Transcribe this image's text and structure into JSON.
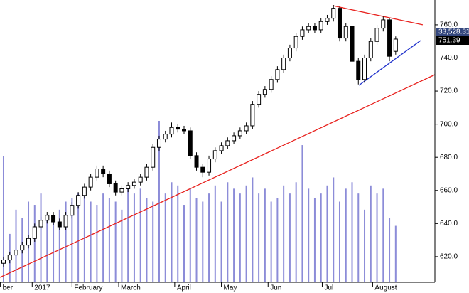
{
  "chart_data": {
    "type": "candlestick",
    "open": [
      616,
      618,
      621,
      624,
      627,
      631,
      638,
      642,
      645,
      641,
      638,
      645,
      651,
      657,
      662,
      668,
      673,
      670,
      664,
      659,
      661,
      663,
      665,
      668,
      674,
      686,
      691,
      694,
      698,
      697,
      696,
      681,
      674,
      671,
      679,
      684,
      687,
      690,
      693,
      696,
      699,
      712,
      718,
      721,
      727,
      733,
      740,
      746,
      753,
      757,
      759,
      757,
      762,
      764,
      770,
      752,
      759,
      738,
      727,
      740,
      750,
      758,
      763,
      744
    ],
    "high": [
      620,
      623,
      626,
      629,
      633,
      640,
      644,
      647,
      647,
      643,
      647,
      653,
      659,
      664,
      670,
      675,
      675,
      672,
      666,
      663,
      665,
      667,
      670,
      676,
      688,
      693,
      696,
      701,
      700,
      699,
      698,
      683,
      676,
      681,
      686,
      689,
      692,
      695,
      698,
      701,
      714,
      720,
      723,
      729,
      735,
      742,
      748,
      755,
      759,
      761,
      761,
      764,
      766,
      772,
      771,
      761,
      760,
      740,
      742,
      752,
      760,
      765,
      764,
      753
    ],
    "low": [
      614,
      616,
      619,
      622,
      625,
      629,
      636,
      640,
      639,
      636,
      636,
      643,
      649,
      655,
      660,
      666,
      668,
      662,
      657,
      657,
      659,
      661,
      663,
      666,
      672,
      684,
      689,
      692,
      695,
      694,
      679,
      672,
      668,
      669,
      677,
      682,
      685,
      688,
      691,
      694,
      697,
      710,
      716,
      719,
      725,
      731,
      738,
      744,
      751,
      755,
      755,
      755,
      760,
      762,
      750,
      750,
      736,
      724,
      725,
      738,
      748,
      756,
      738,
      742
    ],
    "close": [
      618,
      621,
      624,
      627,
      631,
      638,
      642,
      645,
      641,
      638,
      645,
      651,
      657,
      662,
      668,
      673,
      670,
      664,
      659,
      661,
      663,
      665,
      668,
      674,
      686,
      691,
      694,
      698,
      697,
      696,
      681,
      674,
      671,
      679,
      684,
      687,
      690,
      693,
      696,
      699,
      712,
      718,
      721,
      727,
      733,
      740,
      746,
      753,
      757,
      759,
      757,
      762,
      764,
      770,
      752,
      759,
      738,
      727,
      740,
      750,
      758,
      763,
      741,
      751.39
    ],
    "volume": [
      78,
      30,
      45,
      40,
      50,
      48,
      55,
      42,
      38,
      45,
      50,
      52,
      55,
      58,
      50,
      48,
      55,
      52,
      50,
      45,
      60,
      55,
      58,
      52,
      50,
      100,
      55,
      62,
      60,
      48,
      58,
      52,
      50,
      55,
      60,
      50,
      62,
      58,
      55,
      60,
      65,
      55,
      58,
      50,
      52,
      60,
      55,
      62,
      85,
      58,
      52,
      55,
      60,
      65,
      50,
      58,
      62,
      55,
      45,
      60,
      55,
      58,
      40,
      35
    ],
    "volume_lim": [
      0,
      100
    ],
    "volume_color": "#8c8cd8",
    "xlim": [
      -0.57,
      69.3
    ],
    "ylim": [
      604.5,
      775
    ],
    "yticks": [
      {
        "value": 620,
        "label": "620.0"
      },
      {
        "value": 640,
        "label": "640.0"
      },
      {
        "value": 660,
        "label": "660.0"
      },
      {
        "value": 680,
        "label": "680.0"
      },
      {
        "value": 700,
        "label": "700.0"
      },
      {
        "value": 720,
        "label": "720.0"
      },
      {
        "value": 740,
        "label": "740.0"
      },
      {
        "value": 760,
        "label": "760.0"
      }
    ],
    "xticks": [
      {
        "value": -0.5,
        "label": "ber"
      },
      {
        "value": 4.6,
        "label": "2017"
      },
      {
        "value": 11,
        "label": "February"
      },
      {
        "value": 18.5,
        "label": "March"
      },
      {
        "value": 27.5,
        "label": "April"
      },
      {
        "value": 35,
        "label": "May"
      },
      {
        "value": 42.5,
        "label": "Jun"
      },
      {
        "value": 51.2,
        "label": "Jul"
      },
      {
        "value": 59.3,
        "label": "August"
      }
    ],
    "trendlines": [
      {
        "color": "#e8231f",
        "x": [
          -0.57,
          69.3
        ],
        "y": [
          607.5,
          729.9
        ]
      },
      {
        "color": "#e8231f",
        "x": [
          52.85,
          67.35
        ],
        "y": [
          771.6,
          760
        ]
      },
      {
        "color": "#2233cc",
        "x": [
          57.1,
          67.0
        ],
        "y": [
          723.5,
          750.5
        ]
      }
    ],
    "price_labels": [
      {
        "value": 33528.31,
        "label": "33,528.31",
        "color": "#34477e"
      },
      {
        "value": 751.39,
        "label": "751.39",
        "color": "#000000"
      }
    ]
  }
}
